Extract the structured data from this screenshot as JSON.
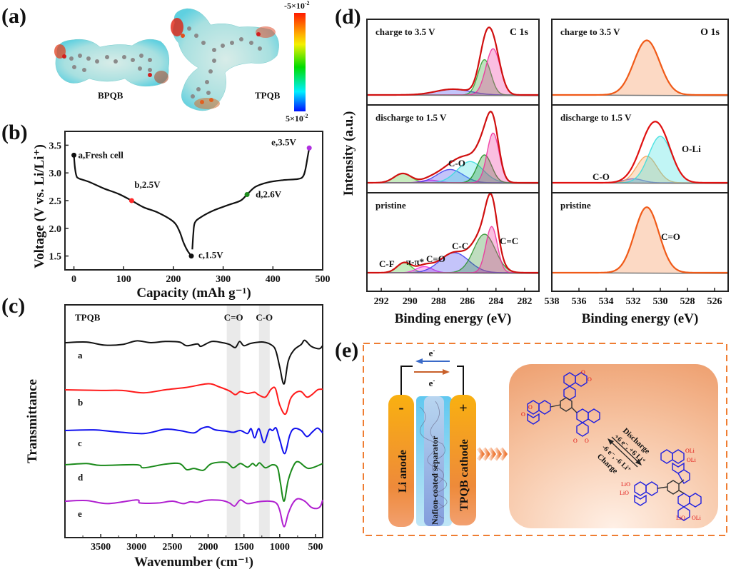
{
  "panels": {
    "a": {
      "letter": "(a)",
      "molecules": [
        "BPQB",
        "TPQB"
      ],
      "colorbar": {
        "top_label": "-5×10",
        "top_exp": "-2",
        "bottom_label": "5×10",
        "bottom_exp": "-2",
        "colors": [
          "#ff0000",
          "#ff8800",
          "#ffff00",
          "#00dd00",
          "#00ffff",
          "#0000ff"
        ]
      }
    },
    "b": {
      "letter": "(b)"
    },
    "c": {
      "letter": "(c)"
    },
    "d": {
      "letter": "(d)",
      "ylabel": "Intensity (a.u.)"
    },
    "e": {
      "letter": "(e)",
      "electron_label": "e",
      "electron_sup": "-",
      "anode_label": "Li  anode",
      "anode_sign": "-",
      "separator_label": "Nafion-coated separator",
      "cathode_label": "TPQB  cathode",
      "cathode_sign": "+",
      "discharge_label": "Discharge",
      "discharge_reaction": "+6 e⁻, +6 Li⁺",
      "charge_reaction": "-6 e⁻, -6 Li⁺",
      "charge_label": "Charge",
      "o_label": "O",
      "oli_label": "OLi",
      "lio_label": "LiO",
      "accent_color": "#ef7d32"
    }
  },
  "chart_data": [
    {
      "id": "b",
      "type": "line",
      "title": "",
      "xlabel": "Capacity (mAh g⁻¹)",
      "ylabel": "Voltage (V vs. Li/Li⁺)",
      "xlim": [
        -18,
        500
      ],
      "ylim": [
        1.25,
        3.75
      ],
      "xticks": [
        0,
        100,
        200,
        300,
        400,
        500
      ],
      "yticks": [
        1.5,
        2.0,
        2.5,
        3.0,
        3.5
      ],
      "series": [
        {
          "name": "discharge",
          "color": "#111111",
          "x": [
            0,
            2,
            5,
            10,
            30,
            60,
            90,
            116,
            140,
            170,
            200,
            212,
            220,
            228,
            236
          ],
          "y": [
            3.32,
            3.1,
            2.95,
            2.9,
            2.84,
            2.72,
            2.62,
            2.5,
            2.38,
            2.28,
            2.12,
            1.95,
            1.75,
            1.6,
            1.5
          ]
        },
        {
          "name": "charge",
          "color": "#111111",
          "x": [
            238,
            240,
            243,
            255,
            280,
            310,
            335,
            348,
            365,
            390,
            420,
            450,
            460,
            465,
            470,
            473
          ],
          "y": [
            1.62,
            1.9,
            2.1,
            2.2,
            2.32,
            2.42,
            2.5,
            2.61,
            2.75,
            2.83,
            2.87,
            2.89,
            2.93,
            3.05,
            3.3,
            3.45
          ]
        }
      ],
      "points": [
        {
          "label": "a,Fresh cell",
          "x": 0,
          "y": 3.32,
          "color": "#111111"
        },
        {
          "label": "b,2.5V",
          "x": 116,
          "y": 2.5,
          "color": "#ff2a2a"
        },
        {
          "label": "c,1.5V",
          "x": 236,
          "y": 1.5,
          "color": "#111111"
        },
        {
          "label": "d,2.6V",
          "x": 348,
          "y": 2.61,
          "color": "#1e8c1e"
        },
        {
          "label": "e,3.5V",
          "x": 473,
          "y": 3.45,
          "color": "#b030e0"
        }
      ]
    },
    {
      "id": "c",
      "type": "line",
      "title": "TPQB",
      "xlabel": "Wavenumber (cm⁻¹)",
      "ylabel": "Transmittance",
      "xlim": [
        4000,
        400
      ],
      "xticks": [
        3500,
        3000,
        2500,
        2000,
        1500,
        1000,
        500
      ],
      "bands": [
        {
          "label": "C=O",
          "from": 1740,
          "to": 1550
        },
        {
          "label": "C-O",
          "from": 1290,
          "to": 1140
        }
      ],
      "series": [
        {
          "name": "a",
          "color": "#111111",
          "x": [
            4000,
            3700,
            3450,
            3200,
            3000,
            2800,
            2600,
            2400,
            2300,
            2150,
            2100,
            1950,
            1800,
            1700,
            1620,
            1560,
            1500,
            1400,
            1230,
            1100,
            1050,
            1000,
            940,
            880,
            800,
            700,
            650,
            560,
            450,
            400
          ],
          "y": [
            0,
            1,
            -4,
            -3,
            3,
            0,
            2,
            1,
            -5,
            -2,
            -6,
            2,
            0,
            -3,
            -8,
            2,
            -5,
            -1,
            1,
            -5,
            -15,
            -40,
            -68,
            -30,
            -12,
            -3,
            4,
            -6,
            -10,
            -5
          ]
        },
        {
          "name": "b",
          "color": "#ff1a1a",
          "x": [
            4000,
            3500,
            3200,
            2900,
            2600,
            2300,
            2000,
            1850,
            1700,
            1620,
            1550,
            1450,
            1350,
            1300,
            1200,
            1120,
            1060,
            1000,
            920,
            850,
            780,
            700,
            620,
            550,
            470,
            400
          ],
          "y": [
            0,
            -1,
            -1,
            -5,
            0,
            4,
            10,
            5,
            -2,
            -8,
            -3,
            -6,
            -4,
            -8,
            -12,
            1,
            2,
            -25,
            -40,
            -15,
            -5,
            -3,
            -12,
            -8,
            0,
            1
          ]
        },
        {
          "name": "c",
          "color": "#1010ee",
          "x": [
            4000,
            3600,
            3300,
            2900,
            2600,
            2400,
            2200,
            2100,
            2000,
            1900,
            1750,
            1650,
            1550,
            1450,
            1400,
            1350,
            1290,
            1220,
            1150,
            1100,
            1050,
            1000,
            930,
            860,
            800,
            700,
            620,
            540,
            470,
            400
          ],
          "y": [
            0,
            1,
            -2,
            -5,
            2,
            0,
            -4,
            3,
            6,
            1,
            -1,
            -3,
            0,
            -5,
            3,
            -12,
            3,
            -20,
            1,
            0,
            4,
            -15,
            -38,
            -8,
            3,
            0,
            -10,
            -2,
            4,
            -4
          ]
        },
        {
          "name": "d",
          "color": "#1a8a1a",
          "x": [
            4000,
            3700,
            3500,
            3000,
            2900,
            2600,
            2400,
            2300,
            2200,
            2100,
            2050,
            1950,
            1750,
            1650,
            1550,
            1450,
            1380,
            1330,
            1280,
            1200,
            1100,
            1030,
            990,
            940,
            880,
            800,
            740,
            650,
            600,
            520,
            400
          ],
          "y": [
            0,
            2,
            -1,
            0,
            -5,
            1,
            2,
            -8,
            -6,
            -9,
            -8,
            2,
            4,
            -5,
            2,
            -4,
            2,
            -2,
            3,
            -5,
            0,
            -5,
            -30,
            -60,
            -25,
            0,
            5,
            -3,
            -6,
            -4,
            2
          ]
        },
        {
          "name": "e",
          "color": "#b020d0",
          "x": [
            4000,
            3700,
            3400,
            3000,
            2950,
            2700,
            2500,
            2350,
            2250,
            2150,
            2050,
            1950,
            1800,
            1700,
            1630,
            1550,
            1450,
            1300,
            1150,
            1050,
            1000,
            940,
            880,
            820,
            750,
            650,
            560,
            480,
            430,
            400
          ],
          "y": [
            0,
            1,
            -4,
            2,
            -3,
            -3,
            0,
            -4,
            -1,
            -2,
            1,
            2,
            1,
            -3,
            -8,
            2,
            -4,
            -1,
            0,
            -3,
            -15,
            -42,
            -20,
            -4,
            4,
            0,
            -10,
            -12,
            -8,
            2
          ]
        }
      ]
    },
    {
      "id": "d-C1s",
      "type": "area",
      "region": "C 1s",
      "xlabel": "Binding energy (eV)",
      "xlim": [
        293,
        281
      ],
      "xticks": [
        292,
        290,
        288,
        286,
        284,
        282
      ],
      "rows": [
        {
          "label": "charge to 3.5 V",
          "envelope_color": "#d01010",
          "components": [
            {
              "name": "blue",
              "center": 287.0,
              "amp": 0.09,
              "width": 1.2,
              "color": "#3a3aee"
            },
            {
              "name": "green",
              "center": 284.8,
              "amp": 0.55,
              "width": 0.45,
              "color": "#2aa02a"
            },
            {
              "name": "magenta",
              "center": 284.2,
              "amp": 0.72,
              "width": 0.5,
              "color": "#ee2a9a"
            }
          ]
        },
        {
          "label": "discharge to 1.5 V",
          "annotations": [
            "C-O"
          ],
          "envelope_color": "#d01010",
          "components": [
            {
              "name": "green-CF",
              "center": 290.5,
              "amp": 0.14,
              "width": 0.6,
              "color": "#4ac02a"
            },
            {
              "name": "magenta-pp",
              "center": 288.6,
              "amp": 0.04,
              "width": 0.6,
              "color": "#ee2ae0"
            },
            {
              "name": "blue",
              "center": 287.2,
              "amp": 0.2,
              "width": 0.9,
              "color": "#3a3aee"
            },
            {
              "name": "cyan",
              "center": 285.8,
              "amp": 0.32,
              "width": 0.9,
              "color": "#33dddd"
            },
            {
              "name": "green",
              "center": 284.8,
              "amp": 0.42,
              "width": 0.5,
              "color": "#1a8a1a"
            },
            {
              "name": "magenta",
              "center": 284.2,
              "amp": 0.75,
              "width": 0.42,
              "color": "#ee2a9a"
            }
          ]
        },
        {
          "label": "pristine",
          "annotations": [
            "C-F",
            "π-π*",
            "C=O",
            "C-C",
            "C=C"
          ],
          "envelope_color": "#d01010",
          "components": [
            {
              "name": "C-F",
              "center": 290.4,
              "amp": 0.13,
              "width": 0.5,
              "color": "#3ac02a"
            },
            {
              "name": "pi-pi",
              "center": 289.0,
              "amp": 0.08,
              "width": 0.55,
              "color": "#ee2ae0"
            },
            {
              "name": "C=O",
              "center": 286.9,
              "amp": 0.26,
              "width": 1.0,
              "color": "#3a3aee"
            },
            {
              "name": "C-C",
              "center": 284.8,
              "amp": 0.5,
              "width": 0.75,
              "color": "#2a902a"
            },
            {
              "name": "C=C",
              "center": 284.3,
              "amp": 0.6,
              "width": 0.4,
              "color": "#ee2a9a"
            }
          ]
        }
      ]
    },
    {
      "id": "d-O1s",
      "type": "area",
      "region": "O 1s",
      "xlabel": "Binding energy (eV)",
      "xlim": [
        538,
        525
      ],
      "xticks": [
        538,
        536,
        534,
        532,
        530,
        528,
        526
      ],
      "rows": [
        {
          "label": "charge to 3.5 V",
          "envelope_color": "#f05a18",
          "components": [
            {
              "name": "C=O",
              "center": 531.0,
              "amp": 0.85,
              "width": 0.95,
              "color": "#f5823a"
            }
          ]
        },
        {
          "label": "discharge to 1.5 V",
          "annotations": [
            "C-O",
            "O-Li"
          ],
          "envelope_color": "#e01010",
          "components": [
            {
              "name": "blue",
              "center": 532.0,
              "amp": 0.06,
              "width": 0.7,
              "color": "#5050ee"
            },
            {
              "name": "orange",
              "center": 531.0,
              "amp": 0.4,
              "width": 0.75,
              "color": "#f5a050"
            },
            {
              "name": "O-Li",
              "center": 530.0,
              "amp": 0.7,
              "width": 0.85,
              "color": "#33dddd"
            }
          ]
        },
        {
          "label": "pristine",
          "annotations": [
            "C=O"
          ],
          "envelope_color": "#f05a18",
          "components": [
            {
              "name": "C=O",
              "center": 531.0,
              "amp": 0.85,
              "width": 0.9,
              "color": "#f5823a"
            }
          ]
        }
      ]
    }
  ]
}
